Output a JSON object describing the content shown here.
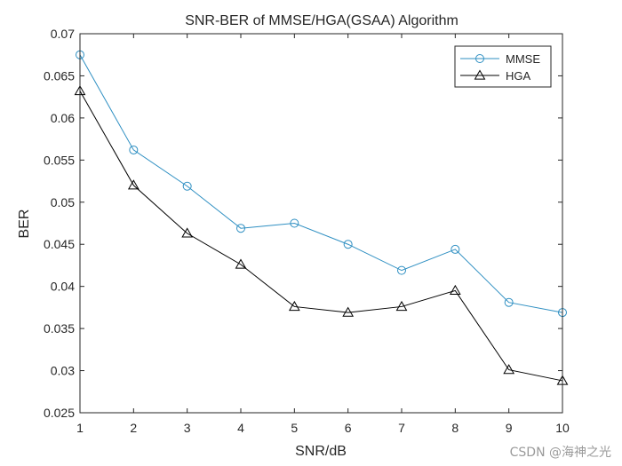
{
  "chart_data": {
    "type": "line",
    "title": "SNR-BER of MMSE/HGA(GSAA) Algorithm",
    "xlabel": "SNR/dB",
    "ylabel": "BER",
    "x": [
      1,
      2,
      3,
      4,
      5,
      6,
      7,
      8,
      9,
      10
    ],
    "xlim": [
      1,
      10
    ],
    "ylim": [
      0.025,
      0.07
    ],
    "xticks": [
      "1",
      "2",
      "3",
      "4",
      "5",
      "6",
      "7",
      "8",
      "9",
      "10"
    ],
    "yticks": [
      "0.025",
      "0.03",
      "0.035",
      "0.04",
      "0.045",
      "0.05",
      "0.055",
      "0.06",
      "0.065",
      "0.07"
    ],
    "grid": false,
    "legend_position": "top-right",
    "series": [
      {
        "name": "MMSE",
        "marker": "circle",
        "color": "#2E8FC2",
        "values": [
          0.0675,
          0.0562,
          0.0519,
          0.0469,
          0.0475,
          0.045,
          0.0419,
          0.0444,
          0.0381,
          0.0369
        ]
      },
      {
        "name": "HGA",
        "marker": "triangle",
        "color": "#000000",
        "values": [
          0.0632,
          0.052,
          0.0463,
          0.0426,
          0.0376,
          0.0369,
          0.0376,
          0.0395,
          0.0301,
          0.0288
        ]
      }
    ]
  },
  "watermark": "CSDN @海神之光"
}
